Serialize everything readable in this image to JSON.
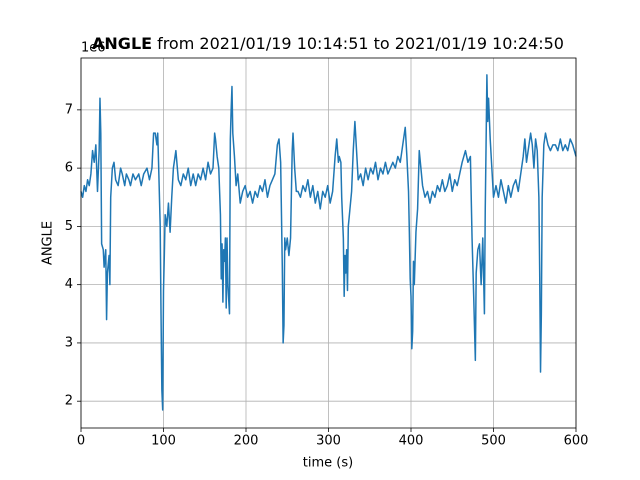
{
  "chart_data": {
    "type": "line",
    "title": [
      "ANGLE",
      "from 2021/01/19 10:14:51 to 2021/01/19 10:24:50"
    ],
    "offset_label": "1e6",
    "x_label": "time (s)",
    "y_label": "ANGLE",
    "color": "#1f77b4",
    "grid": true,
    "xlim": [
      0,
      600
    ],
    "xticks": [
      0,
      100,
      200,
      300,
      400,
      500,
      600
    ],
    "ylim": [
      1.54,
      7.89
    ],
    "yticks": [
      2,
      3,
      4,
      5,
      6,
      7
    ],
    "x": [
      0,
      2,
      4,
      6,
      8,
      10,
      12,
      14,
      16,
      18,
      20,
      22,
      23,
      24,
      25,
      27,
      28,
      30,
      31,
      32,
      34,
      35,
      36,
      38,
      40,
      42,
      45,
      48,
      50,
      53,
      55,
      58,
      60,
      63,
      66,
      70,
      73,
      76,
      80,
      83,
      86,
      88,
      90,
      92,
      93,
      94,
      96,
      97,
      98,
      99,
      100,
      101,
      102,
      104,
      106,
      108,
      110,
      112,
      115,
      118,
      121,
      124,
      127,
      130,
      133,
      136,
      139,
      142,
      145,
      148,
      151,
      154,
      157,
      160,
      162,
      163,
      165,
      167,
      169,
      170,
      171,
      172,
      173,
      174,
      175,
      176,
      177,
      178,
      180,
      181,
      182,
      183,
      184,
      186,
      188,
      190,
      193,
      196,
      199,
      202,
      205,
      208,
      211,
      214,
      217,
      220,
      223,
      226,
      229,
      232,
      235,
      238,
      240,
      242,
      243,
      244,
      245,
      246,
      247,
      248,
      250,
      252,
      254,
      256,
      257,
      259,
      261,
      263,
      266,
      269,
      272,
      275,
      278,
      281,
      284,
      287,
      290,
      293,
      296,
      299,
      302,
      305,
      308,
      310,
      312,
      313,
      315,
      316,
      318,
      319,
      320,
      321,
      322,
      323,
      324,
      326,
      328,
      330,
      332,
      334,
      336,
      339,
      342,
      345,
      348,
      351,
      354,
      357,
      360,
      363,
      366,
      369,
      372,
      375,
      378,
      381,
      384,
      387,
      390,
      392,
      393,
      395,
      397,
      398,
      399,
      400,
      401,
      402,
      403,
      404,
      406,
      408,
      410,
      412,
      414,
      417,
      420,
      423,
      426,
      429,
      432,
      435,
      438,
      441,
      444,
      447,
      450,
      453,
      456,
      459,
      462,
      466,
      469,
      472,
      474,
      476,
      478,
      479,
      481,
      483,
      485,
      487,
      489,
      490,
      491,
      492,
      493,
      494,
      496,
      498,
      500,
      503,
      506,
      509,
      512,
      515,
      518,
      521,
      524,
      527,
      530,
      533,
      536,
      538,
      540,
      542,
      545,
      547,
      549,
      551,
      553,
      555,
      556,
      557,
      558,
      559,
      561,
      563,
      566,
      569,
      572,
      575,
      578,
      581,
      584,
      587,
      590,
      593,
      596,
      600
    ],
    "values": [
      5.6,
      5.5,
      5.7,
      5.6,
      5.8,
      5.7,
      5.9,
      6.3,
      6.1,
      6.4,
      5.6,
      6.3,
      7.2,
      6.6,
      4.7,
      4.6,
      4.3,
      4.6,
      3.4,
      4.2,
      4.5,
      4.0,
      5.5,
      6.0,
      6.1,
      5.8,
      5.7,
      6.0,
      5.9,
      5.7,
      5.9,
      5.8,
      5.7,
      5.9,
      5.8,
      5.9,
      5.7,
      5.9,
      6.0,
      5.8,
      6.0,
      6.6,
      6.6,
      6.4,
      6.6,
      6.1,
      5.0,
      3.5,
      2.2,
      1.85,
      3.9,
      4.5,
      5.2,
      5.0,
      5.4,
      4.9,
      5.5,
      6.0,
      6.3,
      5.8,
      5.7,
      5.9,
      5.8,
      6.0,
      5.7,
      5.9,
      5.7,
      5.9,
      5.8,
      6.0,
      5.8,
      6.1,
      5.9,
      6.0,
      6.6,
      6.5,
      6.2,
      6.0,
      5.2,
      4.1,
      4.7,
      3.7,
      4.6,
      4.4,
      4.8,
      3.6,
      4.8,
      4.0,
      3.5,
      6.5,
      7.0,
      7.4,
      6.6,
      6.2,
      5.7,
      5.9,
      5.4,
      5.6,
      5.7,
      5.5,
      5.6,
      5.4,
      5.6,
      5.5,
      5.7,
      5.6,
      5.8,
      5.5,
      5.7,
      5.8,
      5.9,
      6.4,
      6.5,
      6.1,
      5.2,
      4.3,
      3.0,
      3.3,
      4.8,
      4.6,
      4.8,
      4.5,
      4.8,
      6.3,
      6.6,
      6.0,
      5.6,
      5.6,
      5.5,
      5.7,
      5.6,
      5.8,
      5.5,
      5.7,
      5.4,
      5.6,
      5.3,
      5.6,
      5.5,
      5.7,
      5.4,
      5.6,
      6.2,
      6.5,
      6.1,
      6.2,
      6.1,
      5.5,
      4.8,
      3.8,
      4.5,
      4.2,
      4.6,
      3.9,
      5.0,
      5.3,
      5.6,
      6.3,
      6.8,
      6.3,
      5.8,
      5.9,
      5.7,
      6.0,
      5.8,
      6.0,
      5.9,
      6.1,
      5.8,
      6.0,
      5.9,
      6.1,
      5.9,
      6.0,
      6.1,
      6.0,
      6.2,
      6.1,
      6.4,
      6.6,
      6.7,
      6.2,
      5.6,
      4.9,
      4.1,
      3.8,
      2.9,
      3.2,
      4.4,
      4.0,
      4.9,
      5.3,
      6.3,
      6.0,
      5.7,
      5.5,
      5.6,
      5.4,
      5.6,
      5.5,
      5.7,
      5.6,
      5.8,
      5.6,
      5.7,
      5.9,
      5.6,
      5.8,
      5.7,
      5.9,
      6.1,
      6.3,
      6.1,
      6.2,
      4.8,
      3.8,
      2.7,
      4.2,
      4.6,
      4.7,
      4.0,
      4.8,
      3.5,
      5.3,
      6.4,
      7.6,
      6.8,
      7.2,
      6.5,
      6.0,
      5.5,
      5.7,
      5.5,
      5.8,
      5.6,
      5.4,
      5.7,
      5.5,
      5.7,
      5.8,
      5.6,
      5.9,
      6.2,
      6.5,
      6.1,
      6.3,
      6.6,
      6.4,
      6.0,
      6.5,
      6.3,
      5.5,
      4.2,
      2.5,
      3.5,
      5.5,
      6.4,
      6.6,
      6.4,
      6.3,
      6.4,
      6.4,
      6.3,
      6.5,
      6.3,
      6.4,
      6.3,
      6.5,
      6.4,
      6.2
    ]
  }
}
